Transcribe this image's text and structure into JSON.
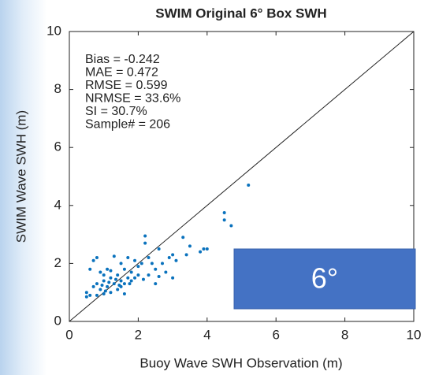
{
  "chart_data": {
    "type": "scatter",
    "title": "SWIM Original 6° Box SWH",
    "x_label": "Buoy Wave SWH Observation (m)",
    "y_label": "SWIM Wave SWH (m)",
    "annotations": [
      "Bias = -0.242",
      "MAE = 0.472",
      "RMSE = 0.599",
      "NRMSE = 33.6%",
      "SI = 30.7%",
      "Sample# = 206"
    ],
    "label_box": "6°",
    "color": "#0a72bd",
    "x": [
      5.2,
      4.5,
      4.5,
      4.7,
      3.9,
      4.0,
      3.8,
      3.5,
      3.3,
      3.0,
      2.9,
      2.7,
      2.6,
      2.5,
      2.4,
      2.3,
      2.3,
      2.2,
      2.2,
      2.1,
      2.0,
      2.0,
      1.9,
      1.9,
      1.8,
      1.8,
      1.7,
      1.7,
      1.6,
      1.6,
      1.5,
      1.5,
      1.5,
      1.4,
      1.4,
      1.3,
      1.3,
      1.2,
      1.2,
      1.1,
      1.1,
      1.0,
      1.0,
      0.9,
      0.9,
      0.8,
      0.8,
      0.7,
      0.7,
      0.6,
      0.6,
      0.5,
      0.5,
      0.8,
      1.6,
      2.5,
      2.8,
      3.0,
      3.1,
      1.0,
      1.2,
      1.35,
      1.45,
      1.75,
      2.15,
      2.6,
      3.4,
      1.05,
      0.95,
      1.15
    ],
    "values": [
      4.7,
      3.75,
      3.5,
      3.3,
      2.5,
      2.5,
      2.4,
      2.6,
      2.9,
      2.3,
      2.2,
      2.0,
      2.5,
      1.8,
      2.0,
      2.2,
      1.6,
      2.95,
      2.7,
      2.0,
      1.9,
      1.6,
      1.5,
      2.1,
      1.7,
      1.4,
      2.2,
      1.5,
      1.3,
      1.8,
      2.0,
      1.4,
      1.2,
      1.6,
      1.1,
      2.25,
      1.3,
      1.5,
      1.0,
      1.8,
      1.2,
      1.4,
      0.95,
      1.7,
      1.1,
      1.3,
      0.9,
      2.1,
      1.2,
      0.9,
      1.8,
      1.0,
      0.85,
      2.2,
      0.95,
      1.3,
      1.7,
      1.5,
      2.1,
      1.6,
      1.75,
      1.45,
      1.25,
      1.3,
      1.45,
      1.55,
      2.3,
      1.05,
      1.25,
      1.35
    ],
    "xlim": [
      0,
      10
    ],
    "ylim": [
      0,
      10
    ],
    "xticks": [
      0,
      2,
      4,
      6,
      8,
      10
    ],
    "yticks": [
      0,
      2,
      4,
      6,
      8,
      10
    ]
  }
}
